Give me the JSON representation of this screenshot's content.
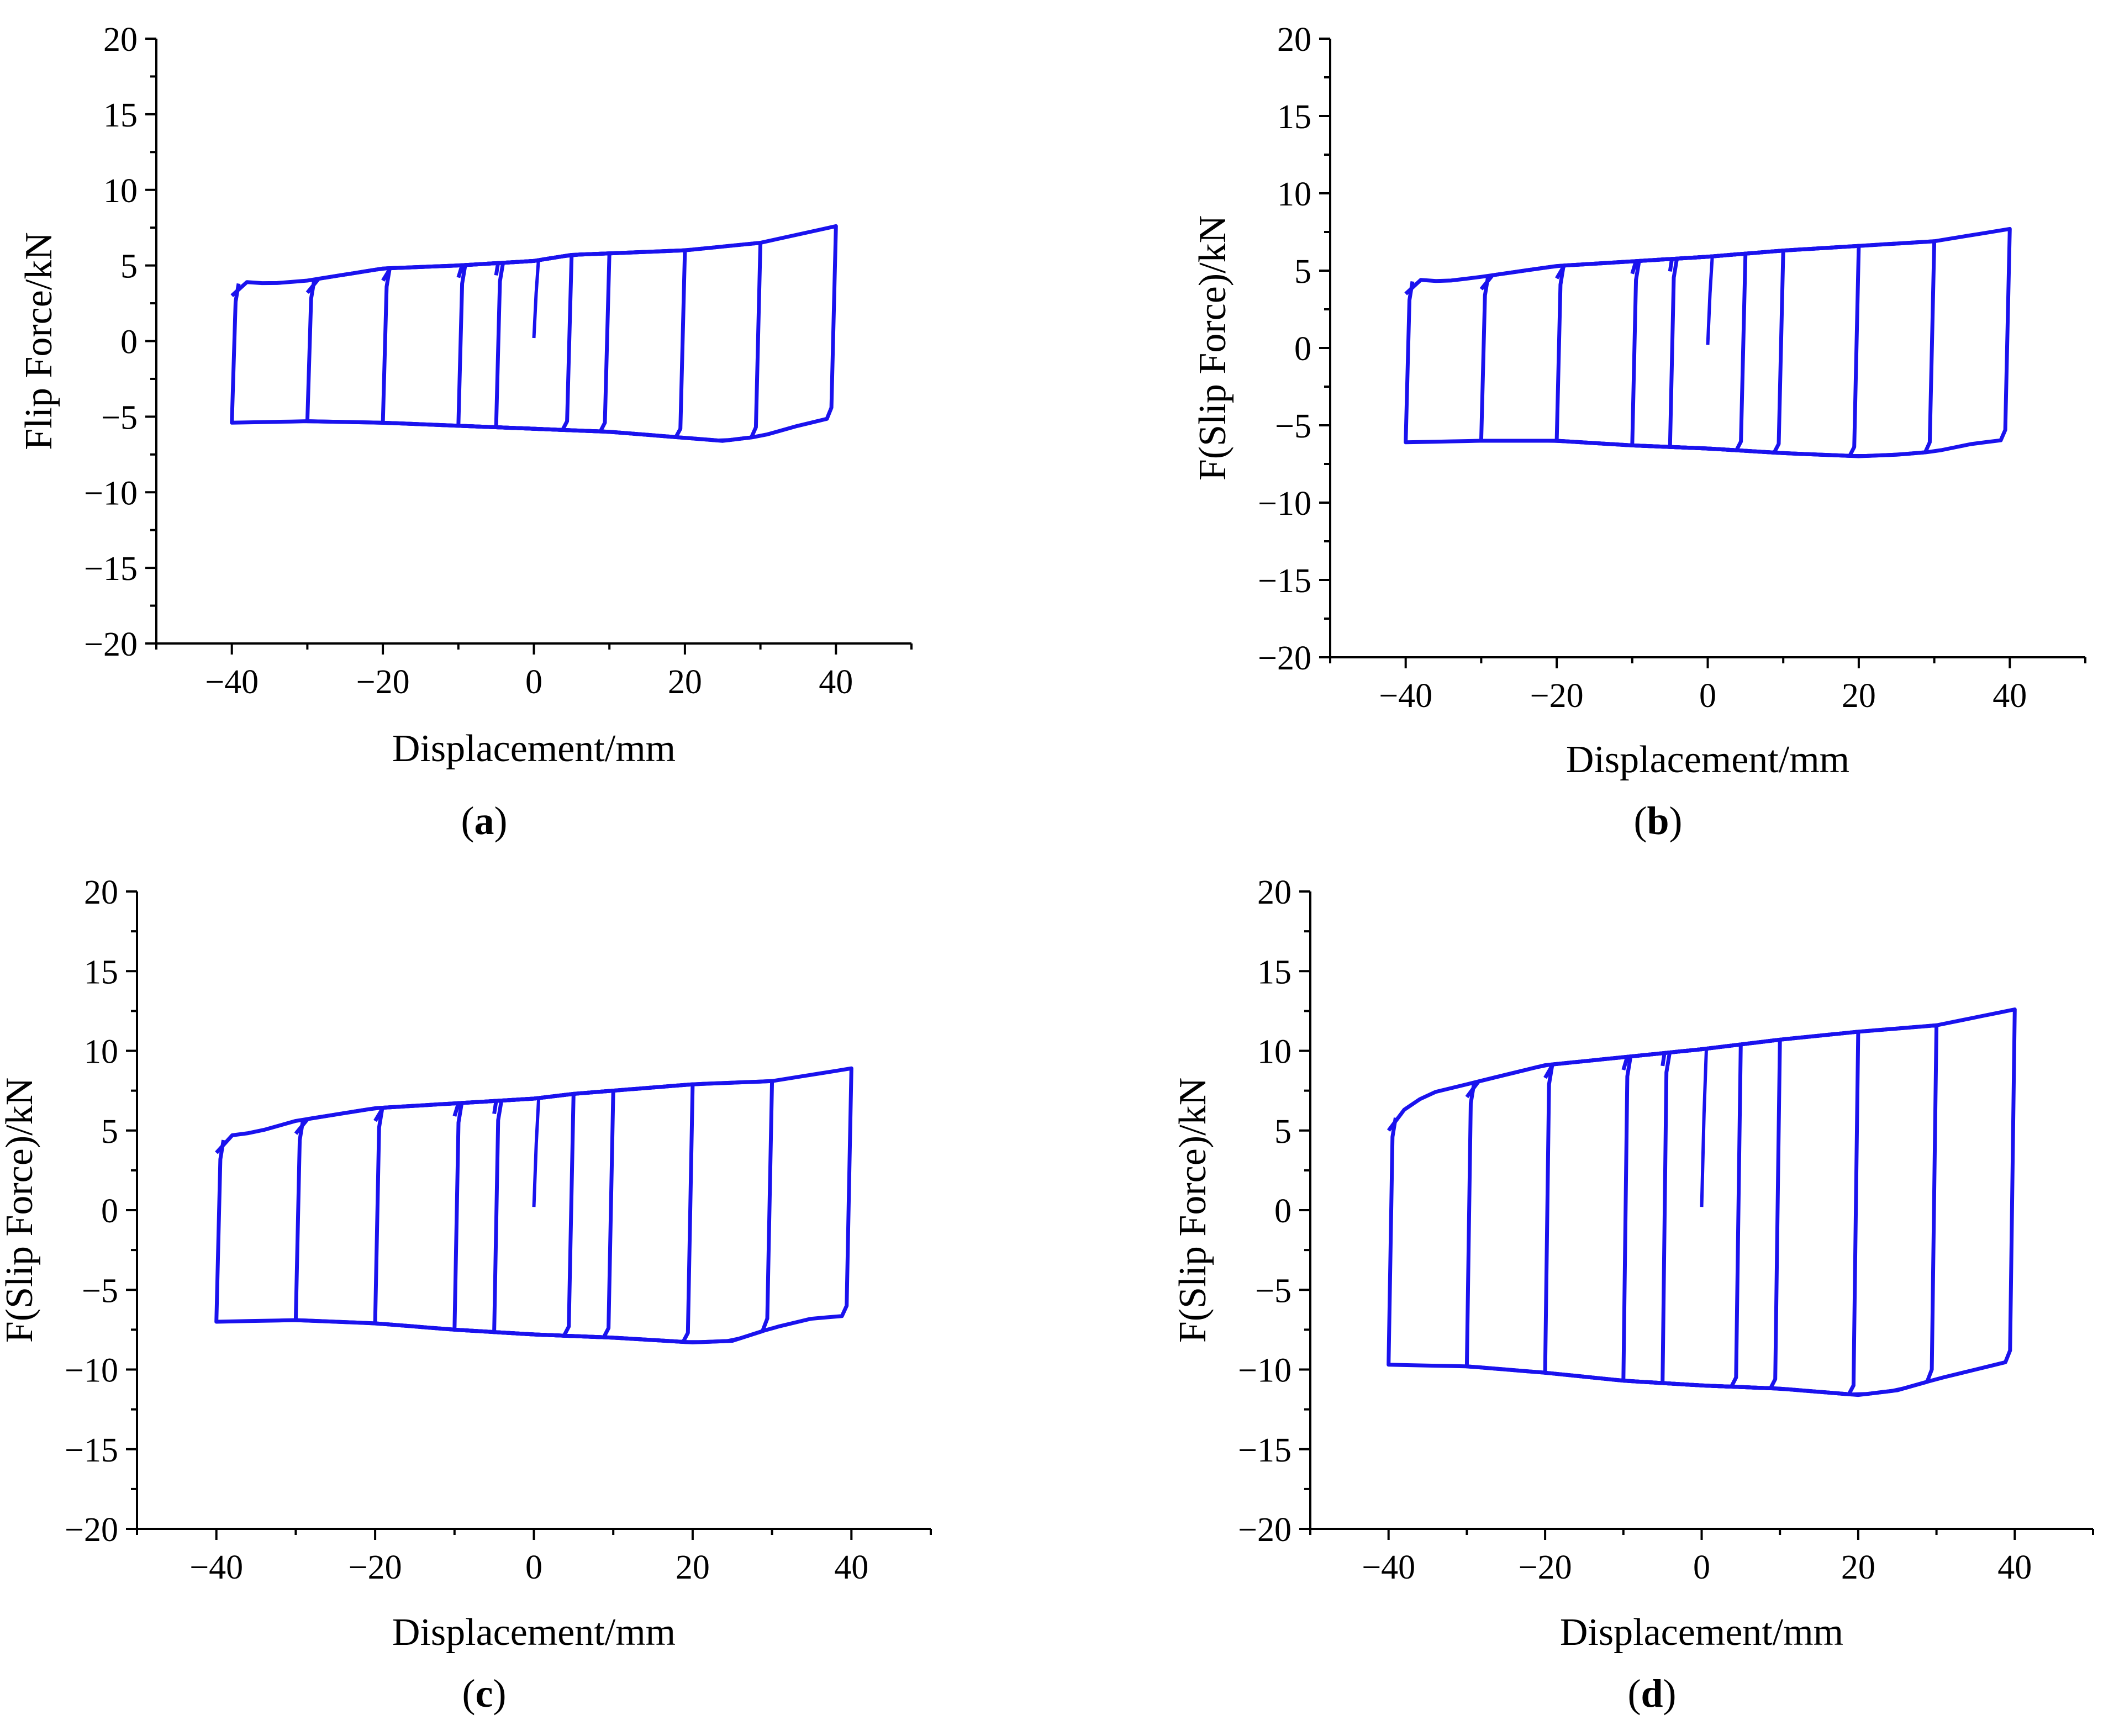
{
  "figure": {
    "line_color": "#1a12ee",
    "axis_color": "#000000"
  },
  "chart_data": [
    {
      "id": "a",
      "type": "line",
      "caption_letter": "a",
      "xlabel": "Displacement/mm",
      "ylabel": "Flip Force/kN",
      "xlim": [
        -50,
        50
      ],
      "ylim": [
        -20,
        20
      ],
      "xticks": [
        -40,
        -20,
        0,
        20,
        40
      ],
      "yticks": [
        20,
        15,
        10,
        5,
        0,
        -5,
        -10,
        -15,
        -20
      ],
      "amplitudes": [
        5,
        10,
        20,
        30,
        40
      ],
      "series": [
        {
          "name": "top",
          "x": [
            -40,
            -38,
            -35,
            -30,
            -20,
            -10,
            0,
            5,
            10,
            20,
            30,
            40
          ],
          "y": [
            3.8,
            3.9,
            3.8,
            4.0,
            4.8,
            5.0,
            5.3,
            5.7,
            5.8,
            6.0,
            6.5,
            7.6
          ]
        },
        {
          "name": "bottom",
          "x": [
            -40,
            -30,
            -20,
            -10,
            0,
            10,
            20,
            25,
            30,
            35,
            40
          ],
          "y": [
            -5.4,
            -5.3,
            -5.4,
            -5.6,
            -5.8,
            -6.0,
            -6.4,
            -6.6,
            -6.3,
            -5.6,
            -5.0
          ]
        }
      ]
    },
    {
      "id": "b",
      "type": "line",
      "caption_letter": "b",
      "xlabel": "Displacement/mm",
      "ylabel": "F(Slip Force)/kN",
      "xlim": [
        -50,
        50
      ],
      "ylim": [
        -20,
        20
      ],
      "xticks": [
        -40,
        -20,
        0,
        20,
        40
      ],
      "yticks": [
        20,
        15,
        10,
        5,
        0,
        -5,
        -10,
        -15,
        -20
      ],
      "amplitudes": [
        5,
        10,
        20,
        30,
        40
      ],
      "series": [
        {
          "name": "top",
          "x": [
            -40,
            -38,
            -35,
            -30,
            -20,
            -10,
            0,
            5,
            10,
            20,
            30,
            40
          ],
          "y": [
            4.3,
            4.4,
            4.3,
            4.6,
            5.3,
            5.6,
            5.9,
            6.1,
            6.3,
            6.6,
            6.9,
            7.7
          ]
        },
        {
          "name": "bottom",
          "x": [
            -40,
            -30,
            -20,
            -10,
            0,
            10,
            20,
            25,
            30,
            35,
            40
          ],
          "y": [
            -6.1,
            -6.0,
            -6.0,
            -6.3,
            -6.5,
            -6.8,
            -7.0,
            -6.9,
            -6.7,
            -6.2,
            -5.9
          ]
        }
      ]
    },
    {
      "id": "c",
      "type": "line",
      "caption_letter": "c",
      "xlabel": "Displacement/mm",
      "ylabel": "F(Slip Force)/kN",
      "xlim": [
        -50,
        50
      ],
      "ylim": [
        -20,
        20
      ],
      "xticks": [
        -40,
        -20,
        0,
        20,
        40
      ],
      "yticks": [
        20,
        15,
        10,
        5,
        0,
        -5,
        -10,
        -15,
        -20
      ],
      "amplitudes": [
        5,
        10,
        20,
        30,
        40
      ],
      "series": [
        {
          "name": "top",
          "x": [
            -40,
            -38,
            -35,
            -30,
            -20,
            -10,
            0,
            5,
            10,
            20,
            30,
            40
          ],
          "y": [
            4.4,
            4.7,
            4.9,
            5.6,
            6.4,
            6.7,
            7.0,
            7.3,
            7.5,
            7.9,
            8.1,
            8.9
          ]
        },
        {
          "name": "bottom",
          "x": [
            -40,
            -30,
            -20,
            -10,
            0,
            10,
            20,
            25,
            30,
            35,
            40
          ],
          "y": [
            -7.0,
            -6.9,
            -7.1,
            -7.5,
            -7.8,
            -8.0,
            -8.3,
            -8.2,
            -7.4,
            -6.8,
            -6.6
          ]
        }
      ]
    },
    {
      "id": "d",
      "type": "line",
      "caption_letter": "d",
      "xlabel": "Displacement/mm",
      "ylabel": "F(Slip Force)/kN",
      "xlim": [
        -50,
        50
      ],
      "ylim": [
        -20,
        20
      ],
      "xticks": [
        -40,
        -20,
        0,
        20,
        40
      ],
      "yticks": [
        20,
        15,
        10,
        5,
        0,
        -5,
        -10,
        -15,
        -20
      ],
      "amplitudes": [
        5,
        10,
        20,
        30,
        40
      ],
      "series": [
        {
          "name": "top",
          "x": [
            -40,
            -38,
            -35,
            -30,
            -20,
            -10,
            0,
            5,
            10,
            20,
            30,
            40
          ],
          "y": [
            5.8,
            6.3,
            7.3,
            7.9,
            9.1,
            9.6,
            10.1,
            10.4,
            10.7,
            11.2,
            11.6,
            12.6
          ]
        },
        {
          "name": "bottom",
          "x": [
            -40,
            -30,
            -20,
            -10,
            0,
            10,
            20,
            25,
            30,
            35,
            40
          ],
          "y": [
            -9.7,
            -9.8,
            -10.2,
            -10.7,
            -11.0,
            -11.2,
            -11.6,
            -11.3,
            -10.6,
            -10.0,
            -9.4
          ]
        }
      ]
    }
  ]
}
